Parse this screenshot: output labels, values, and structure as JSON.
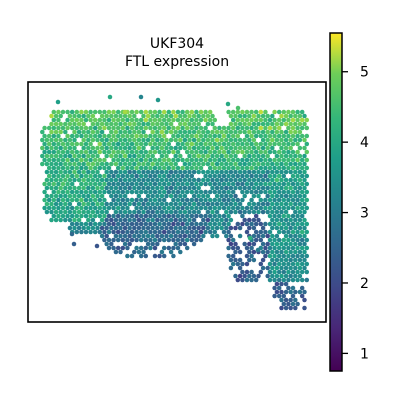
{
  "chart_data": {
    "type": "scatter",
    "title_line1": "UKF304",
    "title_line2": "FTL expression",
    "xlabel": "",
    "ylabel": "",
    "colormap": "viridis",
    "color_range": [
      0.75,
      5.55
    ],
    "colorbar_ticks": [
      1,
      2,
      3,
      4,
      5
    ],
    "colorbar_tick_labels": [
      "1",
      "2",
      "3",
      "4",
      "5"
    ],
    "grid": false,
    "regions": [
      {
        "name": "upper-tissue",
        "expression_center": 4.4,
        "expression_spread": 0.45
      },
      {
        "name": "middle-band",
        "expression_center": 3.3,
        "expression_spread": 0.45
      },
      {
        "name": "lower-left-lobe",
        "expression_center": 2.6,
        "expression_spread": 0.5
      },
      {
        "name": "right-column",
        "expression_center": 3.7,
        "expression_spread": 0.45
      },
      {
        "name": "lower-right-tail",
        "expression_center": 2.4,
        "expression_spread": 0.5
      }
    ]
  }
}
